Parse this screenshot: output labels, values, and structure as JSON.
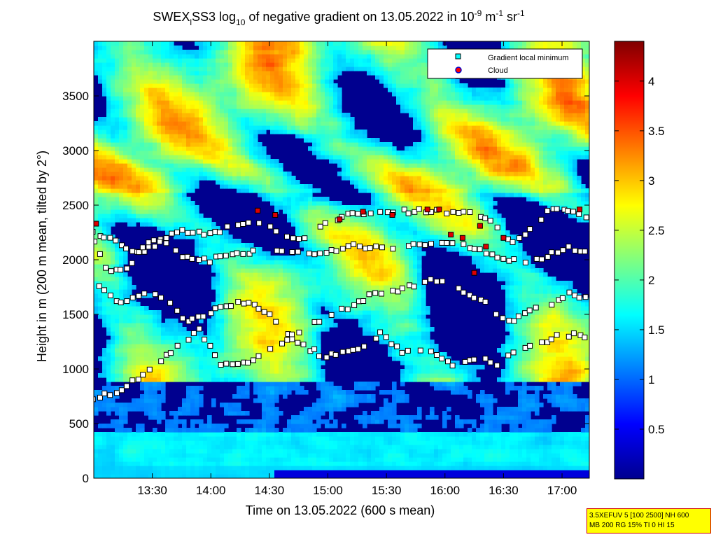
{
  "chart_data": {
    "type": "heatmap",
    "title": "SWEX_l SS3 log10 of negative gradient on 13.05.2022 in 10^-9 m^-1 sr^-1",
    "title_parts": {
      "a": "SWEX",
      "a_sub": "l",
      "b": "SS3 log",
      "b_sub": "10",
      "c": " of negative gradient on 13.05.2022 in 10",
      "c_sup": "-9",
      "d": " m",
      "d_sup": "-1",
      "e": " sr",
      "e_sup": "-1"
    },
    "xlabel": "Time on 13.05.2022 (600 s mean)",
    "ylabel": "Height in m (200 m mean, tilted by 2°)",
    "xlim_hours": [
      13.0,
      17.233
    ],
    "ylim": [
      0,
      4000
    ],
    "x_ticks": [
      {
        "value": 13.5,
        "label": "13:30"
      },
      {
        "value": 14.0,
        "label": "14:00"
      },
      {
        "value": 14.5,
        "label": "14:30"
      },
      {
        "value": 15.0,
        "label": "15:00"
      },
      {
        "value": 15.5,
        "label": "15:30"
      },
      {
        "value": 16.0,
        "label": "16:00"
      },
      {
        "value": 16.5,
        "label": "16:30"
      },
      {
        "value": 17.0,
        "label": "17:00"
      }
    ],
    "y_ticks": [
      0,
      500,
      1000,
      1500,
      2000,
      2500,
      3000,
      3500
    ],
    "colorbar": {
      "min": 0,
      "max": 4.4,
      "ticks": [
        0.5,
        1,
        1.5,
        2,
        2.5,
        3,
        3.5,
        4
      ],
      "colormap": "jet"
    },
    "legend": {
      "placement": "top-right",
      "entries": [
        {
          "label": "Gradient local minimum",
          "color": "#00ffff",
          "marker": "square"
        },
        {
          "label": "Cloud",
          "color": "#ff0000",
          "marker": "circle",
          "edge": "#0000cc"
        }
      ]
    },
    "layers": [
      {
        "name": "Gradient local minimum layer 1",
        "points": [
          [
            13.0,
            2260
          ],
          [
            13.2,
            2150
          ],
          [
            13.4,
            2060
          ],
          [
            13.6,
            2190
          ],
          [
            13.75,
            2260
          ],
          [
            14.0,
            2240
          ],
          [
            14.2,
            2320
          ],
          [
            14.4,
            2330
          ],
          [
            14.55,
            2270
          ],
          [
            14.7,
            2210
          ],
          [
            14.85,
            2200
          ],
          [
            15.0,
            2350
          ],
          [
            15.2,
            2420
          ],
          [
            15.4,
            2430
          ],
          [
            15.6,
            2440
          ],
          [
            15.8,
            2450
          ],
          [
            16.0,
            2440
          ],
          [
            16.2,
            2420
          ],
          [
            16.35,
            2380
          ],
          [
            16.5,
            2240
          ],
          [
            16.6,
            2150
          ],
          [
            16.75,
            2300
          ],
          [
            16.9,
            2460
          ],
          [
            17.0,
            2460
          ],
          [
            17.2,
            2400
          ]
        ]
      },
      {
        "name": "Gradient local minimum layer 2",
        "points": [
          [
            13.0,
            2200
          ],
          [
            13.1,
            1910
          ],
          [
            13.3,
            1930
          ],
          [
            13.4,
            2100
          ],
          [
            13.5,
            2200
          ],
          [
            13.6,
            2150
          ],
          [
            13.8,
            2010
          ],
          [
            14.0,
            1990
          ],
          [
            14.15,
            2050
          ],
          [
            14.3,
            2060
          ],
          [
            14.45,
            2090
          ],
          [
            14.6,
            2090
          ],
          [
            14.8,
            2060
          ],
          [
            15.0,
            2060
          ],
          [
            15.2,
            2140
          ],
          [
            15.4,
            2110
          ],
          [
            15.5,
            2100
          ],
          [
            15.65,
            2120
          ],
          [
            15.8,
            2130
          ],
          [
            16.0,
            2140
          ],
          [
            16.15,
            2130
          ],
          [
            16.3,
            2100
          ],
          [
            16.45,
            2030
          ],
          [
            16.6,
            1990
          ],
          [
            16.75,
            1990
          ],
          [
            16.9,
            2050
          ],
          [
            17.05,
            2110
          ],
          [
            17.2,
            2080
          ]
        ]
      },
      {
        "name": "Gradient local minimum layer 3",
        "points": [
          [
            13.0,
            1780
          ],
          [
            13.25,
            1600
          ],
          [
            13.45,
            1700
          ],
          [
            13.6,
            1650
          ],
          [
            13.8,
            1430
          ],
          [
            13.95,
            1490
          ],
          [
            14.1,
            1570
          ],
          [
            14.3,
            1620
          ],
          [
            14.5,
            1490
          ],
          [
            14.7,
            1300
          ],
          [
            14.85,
            1420
          ],
          [
            15.0,
            1480
          ],
          [
            15.2,
            1570
          ],
          [
            15.4,
            1700
          ],
          [
            15.55,
            1710
          ],
          [
            15.7,
            1760
          ],
          [
            15.85,
            1810
          ],
          [
            16.0,
            1790
          ],
          [
            16.15,
            1700
          ],
          [
            16.3,
            1640
          ],
          [
            16.45,
            1500
          ],
          [
            16.6,
            1440
          ],
          [
            16.75,
            1570
          ],
          [
            16.9,
            1560
          ],
          [
            17.05,
            1690
          ],
          [
            17.2,
            1650
          ]
        ]
      },
      {
        "name": "Gradient local minimum layer 4",
        "points": [
          [
            13.0,
            730
          ],
          [
            13.25,
            810
          ],
          [
            13.9,
            1350
          ],
          [
            14.1,
            1030
          ],
          [
            14.35,
            1080
          ],
          [
            14.55,
            1200
          ],
          [
            14.7,
            1280
          ],
          [
            14.95,
            1120
          ],
          [
            15.2,
            1150
          ],
          [
            15.45,
            1320
          ],
          [
            15.65,
            1150
          ],
          [
            15.85,
            1200
          ],
          [
            16.05,
            1030
          ],
          [
            16.25,
            1100
          ],
          [
            16.45,
            1050
          ],
          [
            16.65,
            1190
          ],
          [
            16.85,
            1250
          ],
          [
            17.0,
            1320
          ],
          [
            17.2,
            1300
          ]
        ]
      }
    ],
    "cloud_points": [
      [
        13.02,
        2330
      ],
      [
        14.4,
        2450
      ],
      [
        15.1,
        2370
      ],
      [
        15.3,
        2440
      ],
      [
        15.55,
        2410
      ],
      [
        15.85,
        2460
      ],
      [
        15.95,
        2460
      ],
      [
        16.05,
        2230
      ],
      [
        16.15,
        2200
      ],
      [
        16.3,
        2310
      ],
      [
        16.35,
        2120
      ],
      [
        16.5,
        2200
      ],
      [
        17.15,
        2460
      ],
      [
        16.25,
        1880
      ],
      [
        14.55,
        2410
      ]
    ]
  },
  "infobox": {
    "line1": "3.5XEFUV 5 [100 2500] NH 600",
    "line2": "MB 200 RG 15% TI 0 HI 15"
  }
}
